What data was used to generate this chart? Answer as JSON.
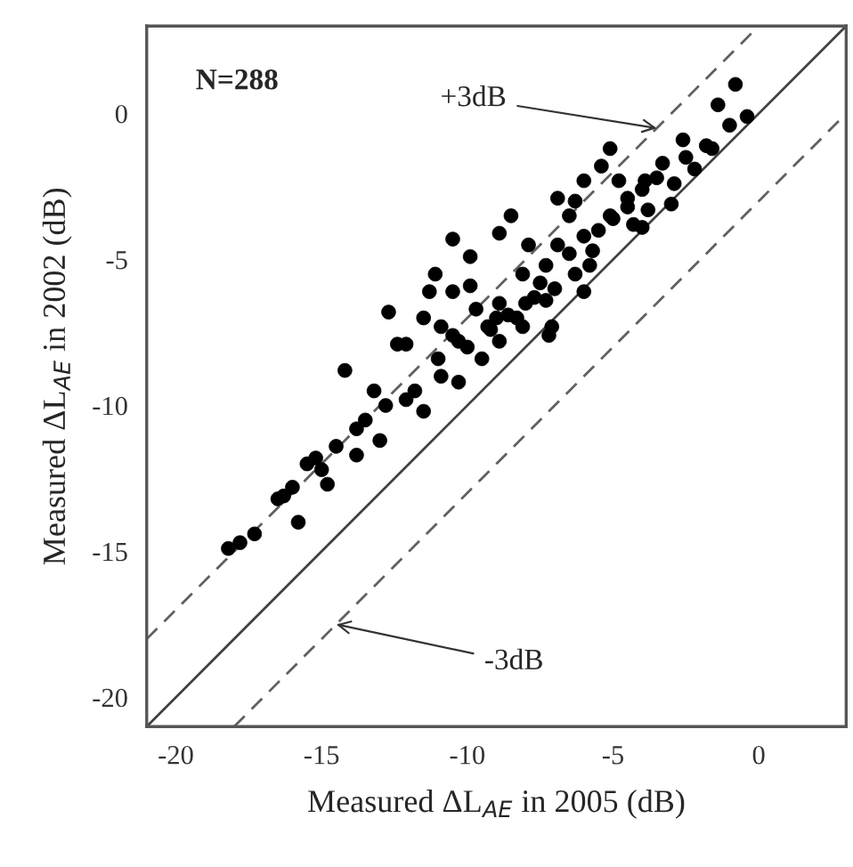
{
  "chart_data": {
    "type": "scatter",
    "xlabel": "Measured ΔL$_{AE}$ in 2005 (dB)",
    "ylabel": "Measured ΔL$_{AE}$ in 2002 (dB)",
    "xlim": [
      -21,
      3
    ],
    "ylim": [
      -21,
      3
    ],
    "xticks": [
      -20,
      -15,
      -10,
      -5,
      0
    ],
    "yticks": [
      -20,
      -15,
      -10,
      -5,
      0
    ],
    "grid": false,
    "legend": false,
    "annotations": [
      "N=288",
      {
        "text": "+3dB",
        "x": -3.5,
        "y": -0.5
      },
      {
        "text": "-3dB",
        "x": -14.5,
        "y": -17.5
      }
    ],
    "series": [
      {
        "type": "scatter",
        "marker": "circle",
        "color": "#000000",
        "x": [
          -18.2,
          -17.3,
          -16.3,
          -15.8,
          -15.2,
          -14.8,
          -14.2,
          -13.8,
          -13.8,
          -13.0,
          -12.4,
          -12.1,
          -11.5,
          -10.9,
          -10.3,
          -10.5,
          -9.5,
          -8.9,
          -8.1,
          -7.2,
          -0.8,
          -1.4,
          -0.4,
          -1.0,
          -1.8,
          -2.6,
          -3.3,
          -3.9,
          -4.5,
          -5.1,
          -5.4,
          -6.0,
          -4.8,
          -3.0,
          -4.0,
          -5.1,
          -6.5,
          -6.9,
          -5.7,
          -6.3,
          -7.3,
          -8.5,
          -8.9,
          -9.9,
          -10.5,
          -11.1,
          -11.3,
          -10.5,
          -9.9,
          -8.1,
          -8.9,
          -9.7,
          -10.9,
          -11.5,
          -12.7,
          -12.1,
          -10.3,
          -9.3,
          -8.3,
          -7.3,
          -7.1,
          -6.0,
          -7.9,
          -6.9,
          -6.5,
          -5.5,
          -7.5,
          -6.0,
          -4.5,
          -3.5,
          -2.5,
          -7.0,
          -8.0,
          -9.0,
          -6.3,
          -5.0,
          -4.0,
          -17.8,
          -16.5,
          -16.0,
          -15.5,
          -15.0,
          -14.5,
          -13.5,
          -13.2,
          -12.8,
          -11.8,
          -11.0,
          -10.0,
          -9.2,
          -8.6,
          -7.7,
          -5.8,
          -4.3,
          -3.8,
          -2.2,
          -2.9,
          -1.6
        ],
        "values": [
          -14.9,
          -14.4,
          -13.1,
          -14.0,
          -11.8,
          -12.7,
          -8.8,
          -10.8,
          -11.7,
          -11.2,
          -7.9,
          -9.8,
          -10.2,
          -9.0,
          -9.2,
          -7.6,
          -8.4,
          -7.8,
          -7.3,
          -7.6,
          1.0,
          0.3,
          -0.1,
          -0.4,
          -1.1,
          -0.9,
          -1.7,
          -2.3,
          -2.9,
          -1.2,
          -1.8,
          -2.3,
          -2.3,
          -3.1,
          -3.9,
          -3.5,
          -3.5,
          -4.5,
          -4.7,
          -5.5,
          -5.2,
          -3.5,
          -4.1,
          -4.9,
          -4.3,
          -5.5,
          -6.1,
          -6.1,
          -5.9,
          -5.5,
          -6.5,
          -6.7,
          -7.3,
          -7.0,
          -6.8,
          -7.9,
          -7.8,
          -7.3,
          -7.0,
          -6.4,
          -7.3,
          -6.1,
          -4.5,
          -2.9,
          -4.8,
          -4.0,
          -5.8,
          -4.2,
          -3.2,
          -2.2,
          -1.5,
          -6.0,
          -6.5,
          -7.0,
          -3.0,
          -3.6,
          -2.6,
          -14.7,
          -13.2,
          -12.8,
          -12.0,
          -12.2,
          -11.4,
          -10.5,
          -9.5,
          -10.0,
          -9.5,
          -8.4,
          -8.0,
          -7.4,
          -6.9,
          -6.3,
          -5.2,
          -3.8,
          -3.3,
          -1.9,
          -2.4,
          -1.2
        ]
      },
      {
        "type": "line",
        "color": "#404040",
        "line_style": "solid",
        "x": [
          -21,
          3
        ],
        "values": [
          -21,
          3
        ]
      },
      {
        "type": "line",
        "color": "#606060",
        "line_style": "dashed",
        "x": [
          -21,
          0
        ],
        "values": [
          -18,
          3
        ]
      },
      {
        "type": "line",
        "color": "#606060",
        "line_style": "dashed",
        "x": [
          -18,
          3
        ],
        "values": [
          -21,
          0
        ]
      }
    ]
  }
}
